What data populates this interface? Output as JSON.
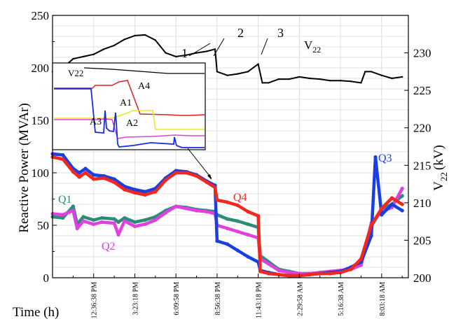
{
  "chart_data": {
    "type": "line",
    "title": "",
    "xlabel": "Time (h)",
    "ylabel": "Reactive Power (MVAr)",
    "y2label_main": "V",
    "y2label_sub": "22",
    "y2label_unit": "(kV)",
    "x_tick_labels": [
      "12:36:38 PM",
      "3:23:18 PM",
      "6:09:58 PM",
      "8:56:38 PM",
      "11:43:18 PM",
      "2:29:58 AM",
      "5:16:38 AM",
      "8:03:18 AM"
    ],
    "x_tick_positions": [
      2,
      4,
      6,
      8,
      10,
      12,
      14,
      16
    ],
    "xlim": [
      0,
      17.3
    ],
    "ylim": [
      0,
      250
    ],
    "yticks": [
      0,
      50,
      100,
      150,
      200,
      250
    ],
    "y2lim": [
      200,
      235
    ],
    "y2ticks": [
      200,
      205,
      210,
      215,
      220,
      225,
      230
    ],
    "grid": true,
    "series": [
      {
        "name": "Q1",
        "color": "#2e8b78",
        "axis": "left",
        "x": [
          0,
          0.5,
          1,
          1.2,
          1.5,
          2,
          2.4,
          3,
          3.2,
          3.5,
          4,
          4.5,
          5,
          5.5,
          6,
          6.5,
          7,
          7.5,
          7.9,
          8,
          8.5,
          9,
          9.5,
          10,
          10.1,
          11,
          11.5,
          12,
          12.5,
          13,
          13.5,
          14,
          14.5,
          15,
          15.5,
          16,
          16.5,
          17
        ],
        "values": [
          58,
          57,
          68,
          51,
          58,
          55,
          57,
          56,
          53,
          57,
          53,
          55,
          58,
          64,
          68,
          67,
          65,
          64,
          63,
          60,
          56,
          54,
          51,
          48,
          21,
          8,
          6,
          4,
          4,
          5,
          6,
          7,
          8,
          14,
          49,
          65,
          70,
          78
        ]
      },
      {
        "name": "Q2",
        "color": "#e040e0",
        "axis": "left",
        "x": [
          0,
          0.5,
          1,
          1.2,
          1.5,
          2,
          2.4,
          3,
          3.2,
          3.5,
          4,
          4.5,
          5,
          5.5,
          6,
          6.5,
          7,
          7.5,
          7.9,
          8,
          8.5,
          9,
          9.5,
          10,
          10.1,
          11,
          11.5,
          12,
          12.5,
          13,
          13.5,
          14,
          14.5,
          15,
          15.5,
          16,
          16.5,
          17
        ],
        "values": [
          61,
          60,
          64,
          47,
          54,
          51,
          53,
          52,
          41,
          54,
          49,
          51,
          55,
          62,
          68,
          66,
          64,
          63,
          61,
          50,
          47,
          44,
          41,
          38,
          18,
          7,
          5,
          4,
          4,
          5,
          6,
          7,
          8,
          12,
          52,
          63,
          67,
          85
        ]
      },
      {
        "name": "Q3",
        "color": "#1a3fe0",
        "axis": "left",
        "x": [
          0,
          0.5,
          1,
          1.3,
          1.6,
          2,
          2.5,
          3,
          3.5,
          4,
          4.5,
          5,
          5.5,
          6,
          6.5,
          7,
          7.5,
          7.9,
          8,
          8.5,
          9,
          9.5,
          10,
          10.1,
          10.5,
          11,
          11.5,
          12,
          12.5,
          13,
          13.5,
          14,
          14.5,
          15,
          15.5,
          15.7,
          16,
          16.5,
          17
        ],
        "values": [
          118,
          117,
          104,
          100,
          104,
          98,
          97,
          94,
          87,
          84,
          82,
          85,
          95,
          102,
          101,
          98,
          92,
          88,
          35,
          32,
          26,
          20,
          15,
          7,
          5,
          3,
          2,
          2,
          3,
          4,
          5,
          6,
          10,
          15,
          40,
          115,
          60,
          70,
          64
        ]
      },
      {
        "name": "Q4",
        "color": "#f0281e",
        "axis": "left",
        "x": [
          0,
          0.5,
          1,
          1.3,
          1.6,
          2,
          2.5,
          3,
          3.5,
          4,
          4.5,
          5,
          5.5,
          6,
          6.5,
          7,
          7.5,
          7.9,
          8,
          8.5,
          9,
          9.5,
          10,
          10.1,
          10.5,
          11,
          11.5,
          12,
          12.5,
          13,
          13.5,
          14,
          14.5,
          15,
          15.5,
          16,
          16.5,
          17
        ],
        "values": [
          115,
          113,
          101,
          96,
          100,
          94,
          95,
          91,
          84,
          81,
          79,
          82,
          93,
          100,
          100,
          97,
          91,
          86,
          74,
          72,
          69,
          63,
          59,
          6,
          4,
          3,
          2,
          2,
          3,
          4,
          4,
          5,
          8,
          18,
          50,
          66,
          76,
          70
        ]
      },
      {
        "name": "V22",
        "color": "#000000",
        "axis": "right",
        "x": [
          0,
          0.5,
          1,
          1.5,
          2,
          2.5,
          3,
          3.5,
          4,
          4.5,
          5,
          5.5,
          6,
          6.5,
          7,
          7.5,
          7.9,
          8,
          8.5,
          9,
          9.5,
          10,
          10.2,
          10.5,
          11,
          11.5,
          12,
          12.5,
          13,
          13.5,
          14,
          14.5,
          15,
          15.2,
          15.5,
          16,
          16.5,
          17
        ],
        "values": [
          227.5,
          228,
          229.2,
          229.5,
          229.8,
          230.5,
          231,
          231.8,
          232.3,
          232.4,
          231.7,
          230,
          229.5,
          229.7,
          230,
          230.2,
          230.5,
          227.5,
          227,
          227.2,
          227.5,
          228.5,
          226,
          226,
          226.5,
          226.5,
          226.8,
          226.6,
          226.5,
          226.3,
          226.3,
          226.2,
          226,
          227.5,
          227.5,
          227,
          226.6,
          226.8
        ]
      }
    ],
    "annotations": [
      "1",
      "2",
      "3",
      "V22",
      "Q1",
      "Q2",
      "Q3",
      "Q4"
    ],
    "inset": {
      "type": "line",
      "series_labels": [
        "V22",
        "A4",
        "A1",
        "A2",
        "A3"
      ]
    }
  }
}
